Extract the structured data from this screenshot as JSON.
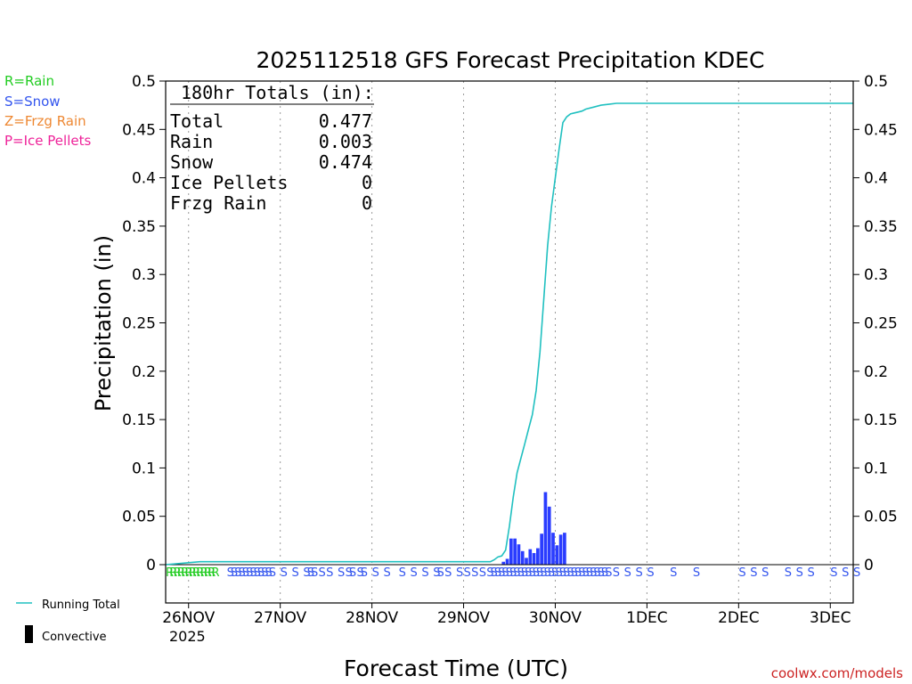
{
  "chart_data": {
    "type": "bar",
    "title": "2025112518 GFS Forecast Precipitation KDEC",
    "xlabel": "Forecast Time (UTC)",
    "ylabel": "Precipitation (in)",
    "ylim": [
      0,
      0.5
    ],
    "yticks": [
      "0",
      "0.05",
      "0.1",
      "0.15",
      "0.2",
      "0.25",
      "0.3",
      "0.35",
      "0.4",
      "0.45",
      "0.5"
    ],
    "xlim_hours": [
      0,
      180
    ],
    "xticks": [
      {
        "label": "26NOV",
        "hour": 6
      },
      {
        "label": "27NOV",
        "hour": 30
      },
      {
        "label": "28NOV",
        "hour": 54
      },
      {
        "label": "29NOV",
        "hour": 78
      },
      {
        "label": "30NOV",
        "hour": 102
      },
      {
        "label": "1DEC",
        "hour": 126
      },
      {
        "label": "2DEC",
        "hour": 150
      },
      {
        "label": "3DEC",
        "hour": 174
      }
    ],
    "year_label": "2025",
    "legend_types": [
      {
        "text": "R=Rain",
        "color": "#22cc22"
      },
      {
        "text": "S=Snow",
        "color": "#3355ee"
      },
      {
        "text": "Z=Frzg Rain",
        "color": "#ee8833"
      },
      {
        "text": "P=Ice Pellets",
        "color": "#ee2299"
      }
    ],
    "legend_series": [
      {
        "text": "Running Total",
        "color": "#20c0c0"
      },
      {
        "text": "Convective",
        "color": "#000000"
      }
    ],
    "totals": {
      "heading": "180hr Totals (in):",
      "rows": [
        {
          "label": "Total",
          "value": "0.477"
        },
        {
          "label": "Rain",
          "value": "0.003"
        },
        {
          "label": "Snow",
          "value": "0.474"
        },
        {
          "label": "Ice Pellets",
          "value": "0"
        },
        {
          "label": "Frzg Rain",
          "value": "0"
        }
      ]
    },
    "series": [
      {
        "name": "Hourly Precipitation (snow)",
        "color": "#2a3cff",
        "hours": [
          88,
          89,
          90,
          91,
          92,
          93,
          94,
          95,
          96,
          97,
          98,
          99,
          100,
          101,
          102,
          103,
          104
        ],
        "values": [
          0.003,
          0.006,
          0.027,
          0.027,
          0.021,
          0.014,
          0.007,
          0.016,
          0.012,
          0.017,
          0.032,
          0.075,
          0.06,
          0.033,
          0.02,
          0.031,
          0.033
        ]
      },
      {
        "name": "Running Total",
        "color": "#20c0c0",
        "hours": [
          0,
          9,
          85,
          86,
          87,
          88,
          89,
          90,
          91,
          92,
          93,
          94,
          95,
          96,
          97,
          98,
          99,
          100,
          101,
          102,
          103,
          104,
          105,
          106,
          107,
          108,
          109,
          110,
          112,
          114,
          116,
          118,
          124,
          130,
          180
        ],
        "values": [
          0,
          0.003,
          0.003,
          0.005,
          0.008,
          0.009,
          0.015,
          0.04,
          0.07,
          0.095,
          0.11,
          0.125,
          0.14,
          0.155,
          0.18,
          0.22,
          0.275,
          0.33,
          0.37,
          0.4,
          0.43,
          0.457,
          0.463,
          0.466,
          0.467,
          0.468,
          0.469,
          0.471,
          0.473,
          0.475,
          0.476,
          0.477,
          0.477,
          0.477,
          0.477
        ]
      }
    ],
    "type_strip": {
      "rain_hours": [
        0,
        1,
        2,
        3,
        4,
        5,
        6,
        7,
        8,
        9,
        10,
        11,
        12
      ],
      "snow_hours": [
        16,
        17,
        18,
        19,
        20,
        21,
        22,
        23,
        24,
        25,
        26,
        27,
        30,
        33,
        36,
        37,
        38,
        40,
        42,
        45,
        47,
        48,
        50,
        51,
        54,
        57,
        61,
        64,
        67,
        70,
        71,
        73,
        76,
        78,
        80,
        82,
        84,
        85,
        86,
        87,
        88,
        89,
        90,
        91,
        92,
        93,
        94,
        95,
        96,
        97,
        98,
        99,
        100,
        101,
        102,
        103,
        104,
        105,
        106,
        107,
        108,
        109,
        110,
        111,
        112,
        113,
        114,
        115,
        117,
        120,
        123,
        126,
        132,
        138,
        150,
        153,
        156,
        162,
        165,
        168,
        174,
        177,
        180
      ]
    },
    "credit": "coolwx.com/models"
  }
}
